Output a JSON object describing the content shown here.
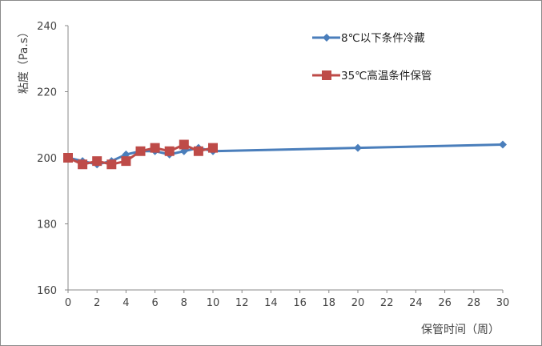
{
  "chart_data": {
    "type": "line",
    "title": "",
    "xlabel": "保管时间（周）",
    "ylabel": "粘度（Pa.s）",
    "xlim": [
      0,
      30
    ],
    "ylim": [
      160,
      240
    ],
    "xticks": [
      0,
      2,
      4,
      6,
      8,
      10,
      12,
      14,
      16,
      18,
      20,
      22,
      24,
      26,
      28,
      30
    ],
    "yticks": [
      160,
      180,
      200,
      220,
      240
    ],
    "grid": false,
    "legend_position": "top-right",
    "series": [
      {
        "name": "8℃以下条件冷藏",
        "color": "#4a7ebb",
        "marker": "diamond",
        "x": [
          0,
          1,
          2,
          3,
          4,
          5,
          6,
          7,
          8,
          9,
          10,
          20,
          30
        ],
        "y": [
          200,
          199,
          198,
          199,
          201,
          202,
          202,
          201,
          202,
          203,
          202,
          203,
          204
        ]
      },
      {
        "name": "35℃高温条件保管",
        "color": "#be4b48",
        "marker": "square",
        "x": [
          0,
          1,
          2,
          3,
          4,
          5,
          6,
          7,
          8,
          9,
          10
        ],
        "y": [
          200,
          198,
          199,
          198,
          199,
          202,
          203,
          202,
          204,
          202,
          203
        ]
      }
    ]
  }
}
